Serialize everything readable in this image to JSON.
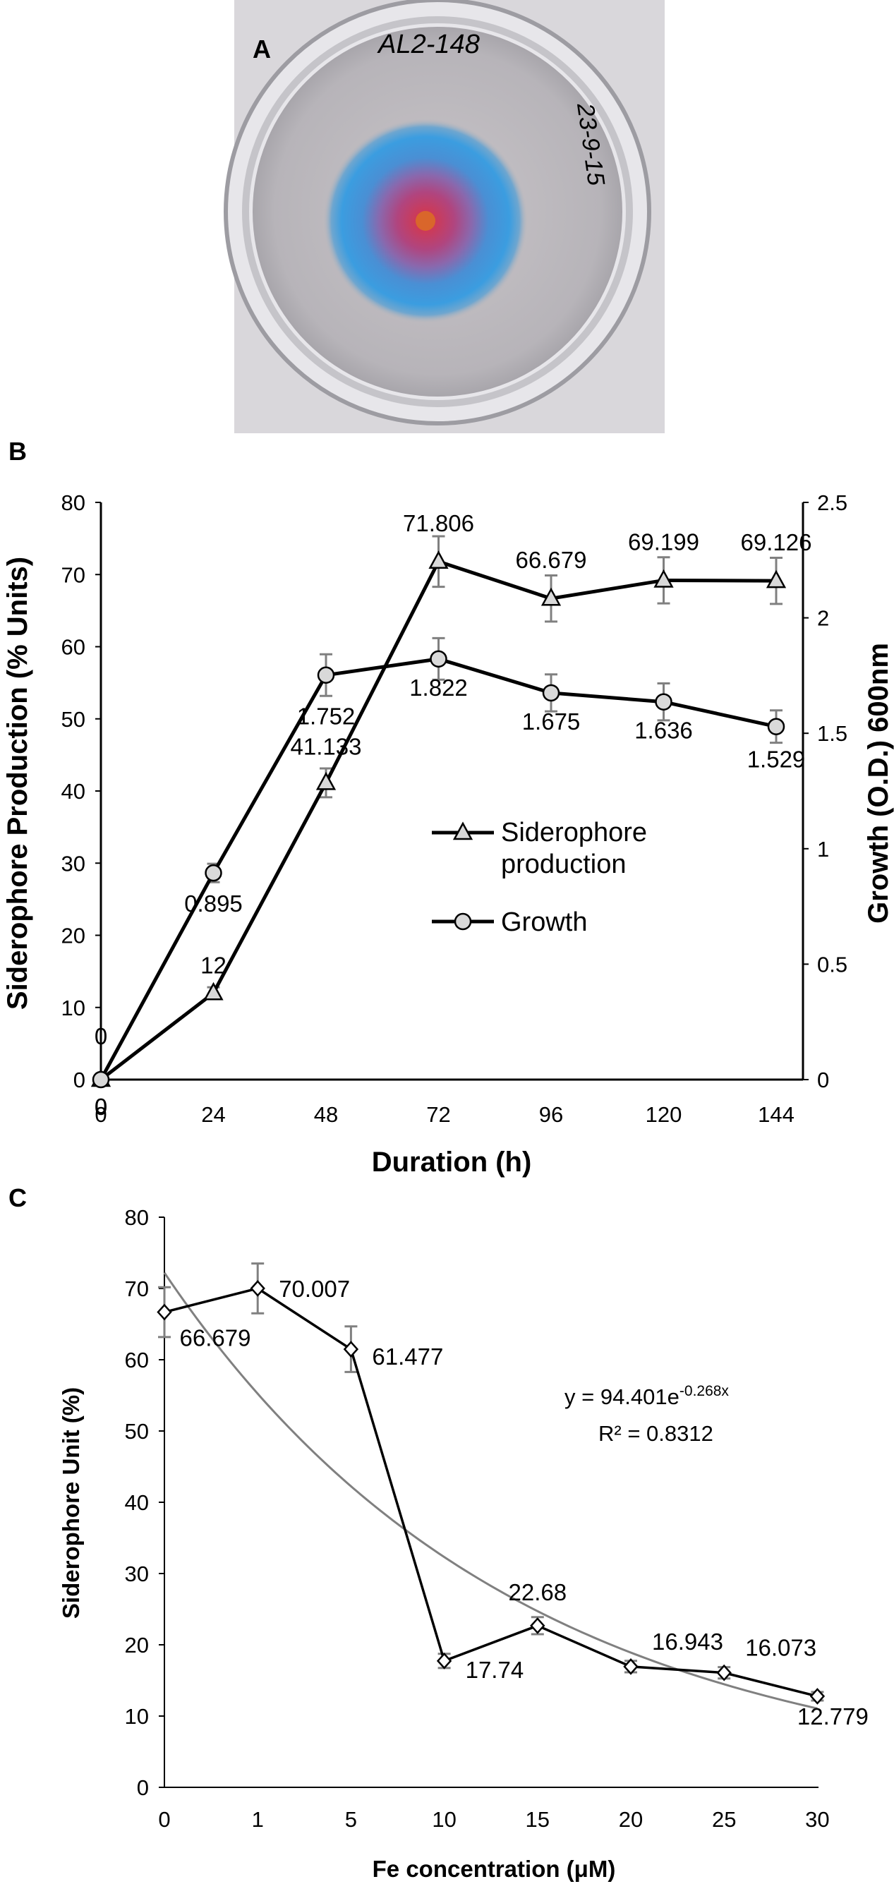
{
  "panel_a": {
    "label": "A",
    "plate_text_top": "AL2-148",
    "plate_text_side": "23-9-15"
  },
  "chart_data": [
    {
      "panel": "B",
      "type": "line",
      "x": [
        0,
        24,
        48,
        72,
        96,
        120,
        144
      ],
      "x_tick_labels": [
        "0",
        "24",
        "48",
        "72",
        "96",
        "120",
        "144"
      ],
      "xlabel": "Duration (h)",
      "ylabel": "Siderophore Production (% Units)",
      "y2label": "Growth (O.D.) 600nm",
      "ylim": [
        0,
        80
      ],
      "y2lim": [
        0,
        2.5
      ],
      "y_ticks": [
        "0",
        "10",
        "20",
        "30",
        "40",
        "50",
        "60",
        "70",
        "80"
      ],
      "y2_ticks": [
        "0",
        "0.5",
        "1",
        "1.5",
        "2",
        "2.5"
      ],
      "series": [
        {
          "name": "Siderophore production",
          "axis": "left",
          "marker": "triangle",
          "values": [
            0,
            12,
            41.133,
            71.806,
            66.679,
            69.199,
            69.126
          ],
          "errors": [
            0,
            0.8,
            2.0,
            3.5,
            3.2,
            3.2,
            3.2
          ],
          "labels": [
            "0",
            "12",
            "41.133",
            "71.806",
            "66.679",
            "69.199",
            "69.126"
          ]
        },
        {
          "name": "Growth",
          "axis": "right",
          "marker": "circle",
          "values": [
            0,
            0.895,
            1.752,
            1.822,
            1.675,
            1.636,
            1.529
          ],
          "errors": [
            0,
            0.04,
            0.09,
            0.09,
            0.08,
            0.08,
            0.07
          ],
          "labels": [
            "0",
            "0.895",
            "1.752",
            "1.822",
            "1.675",
            "1.636",
            "1.529"
          ]
        }
      ],
      "legend": {
        "position": "center-right",
        "line1": "Siderophore",
        "line2": "production",
        "growth": "Growth"
      }
    },
    {
      "panel": "C",
      "type": "line",
      "categories": [
        "0",
        "1",
        "5",
        "10",
        "15",
        "20",
        "25",
        "30"
      ],
      "xlabel": "Fe concentration (μM)",
      "ylabel": "Siderophore Unit (%)",
      "ylim": [
        0,
        80
      ],
      "y_ticks": [
        "0",
        "10",
        "20",
        "30",
        "40",
        "50",
        "60",
        "70",
        "80"
      ],
      "series": [
        {
          "name": "Siderophore Unit",
          "marker": "diamond",
          "values": [
            66.679,
            70.007,
            61.477,
            17.74,
            22.68,
            16.943,
            16.073,
            12.779
          ],
          "errors": [
            3.5,
            3.5,
            3.2,
            1.0,
            1.2,
            0.8,
            0.8,
            0.6
          ],
          "labels": [
            "66.679",
            "70.007",
            "61.477",
            "17.74",
            "22.68",
            "16.943",
            "16.073",
            "12.779"
          ]
        }
      ],
      "trendline": {
        "type": "exponential",
        "a": 94.401,
        "b": -0.268,
        "equation_main": "y = 94.401e",
        "equation_exp": "-0.268x",
        "r2_text": "R² = 0.8312"
      }
    }
  ]
}
